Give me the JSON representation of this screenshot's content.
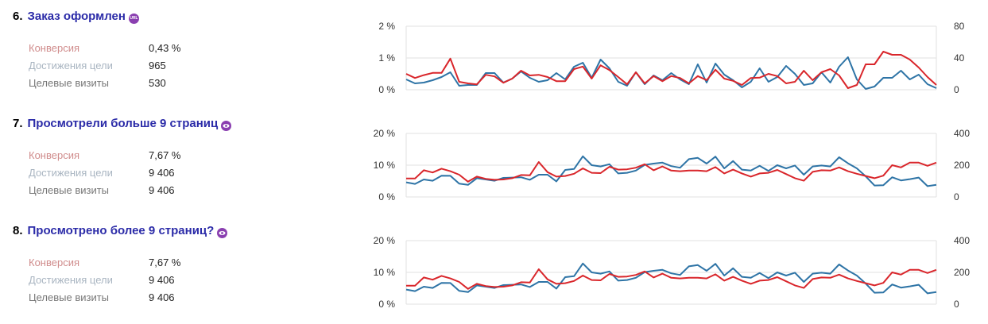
{
  "goals": [
    {
      "number": "6.",
      "title": "Заказ оформлен",
      "badge": "URL",
      "badge_icon": "url-icon",
      "metrics": [
        {
          "label": "Конверсия",
          "value": "0,43 %"
        },
        {
          "label": "Достижения цели",
          "value": "965"
        },
        {
          "label": "Целевые визиты",
          "value": "530"
        }
      ]
    },
    {
      "number": "7.",
      "title": "Просмотрели больше 9 страниц",
      "badge": "",
      "badge_icon": "eye-icon",
      "metrics": [
        {
          "label": "Конверсия",
          "value": "7,67 %"
        },
        {
          "label": "Достижения цели",
          "value": "9 406"
        },
        {
          "label": "Целевые визиты",
          "value": "9 406"
        }
      ]
    },
    {
      "number": "8.",
      "title": "Просмотрено более 9 страниц?",
      "badge": "",
      "badge_icon": "eye-icon",
      "metrics": [
        {
          "label": "Конверсия",
          "value": "7,67 %"
        },
        {
          "label": "Достижения цели",
          "value": "9 406"
        },
        {
          "label": "Целевые визиты",
          "value": "9 406"
        }
      ]
    }
  ],
  "colors": {
    "red": "#d9262b",
    "blue": "#2e74a6"
  },
  "chart_data": [
    {
      "type": "line",
      "left_ticks": [
        "0 %",
        "1 %",
        "2 %"
      ],
      "right_ticks": [
        "0",
        "40",
        "80"
      ],
      "left_max": 2,
      "right_max": 80,
      "series": [
        {
          "name": "Конверсия",
          "axis": "left",
          "color": "#d9262b",
          "values": [
            0.5,
            0.37,
            0.46,
            0.53,
            0.53,
            0.98,
            0.25,
            0.2,
            0.17,
            0.47,
            0.42,
            0.22,
            0.35,
            0.6,
            0.45,
            0.47,
            0.4,
            0.27,
            0.27,
            0.65,
            0.73,
            0.35,
            0.77,
            0.62,
            0.4,
            0.17,
            0.55,
            0.2,
            0.43,
            0.27,
            0.43,
            0.37,
            0.2,
            0.43,
            0.3,
            0.63,
            0.35,
            0.28,
            0.15,
            0.37,
            0.38,
            0.5,
            0.43,
            0.2,
            0.25,
            0.6,
            0.3,
            0.55,
            0.65,
            0.45,
            0.05,
            0.15,
            0.8,
            0.8,
            1.2,
            1.1,
            1.1,
            0.95,
            0.7,
            0.4,
            0.15
          ]
        },
        {
          "name": "Целевые визиты",
          "axis": "right",
          "color": "#2e74a6",
          "values": [
            13,
            8,
            9,
            12,
            16,
            22,
            5,
            6,
            6,
            21,
            21,
            9,
            14,
            23,
            15,
            10,
            12,
            21,
            13,
            29,
            34,
            15,
            38,
            27,
            10,
            5,
            22,
            7,
            18,
            12,
            21,
            13,
            7,
            32,
            9,
            33,
            19,
            12,
            3,
            10,
            27,
            10,
            16,
            30,
            20,
            6,
            8,
            22,
            9,
            29,
            41,
            13,
            1,
            4,
            15,
            15,
            24,
            13,
            19,
            7,
            2
          ]
        }
      ]
    },
    {
      "type": "line",
      "left_ticks": [
        "0 %",
        "10 %",
        "20 %"
      ],
      "right_ticks": [
        "0",
        "200",
        "400"
      ],
      "left_max": 20,
      "right_max": 400,
      "series": [
        {
          "name": "Конверсия",
          "axis": "left",
          "color": "#d9262b",
          "values": [
            5.8,
            5.8,
            8.4,
            7.7,
            8.9,
            8.1,
            7,
            4.8,
            6.4,
            5.7,
            5.4,
            5.5,
            5.9,
            6.9,
            6.8,
            11,
            7.8,
            6.4,
            6.6,
            7.3,
            9,
            7.6,
            7.5,
            9.5,
            8.6,
            8.7,
            9.2,
            10.3,
            8.4,
            9.6,
            8.3,
            8.1,
            8.3,
            8.3,
            8.1,
            9.4,
            7.4,
            8.6,
            7.4,
            6.4,
            7.4,
            7.6,
            8.5,
            7.2,
            5.9,
            5.1,
            7.9,
            8.4,
            8.3,
            9.3,
            8.1,
            7.3,
            6.6,
            5.9,
            6.7,
            10,
            9.3,
            10.8,
            10.8,
            9.8,
            10.8
          ]
        },
        {
          "name": "Целевые визиты",
          "axis": "right",
          "color": "#2e74a6",
          "values": [
            92,
            82,
            110,
            102,
            134,
            133,
            84,
            76,
            118,
            110,
            102,
            120,
            122,
            124,
            108,
            140,
            140,
            98,
            170,
            176,
            256,
            200,
            192,
            206,
            148,
            152,
            166,
            202,
            210,
            216,
            194,
            184,
            238,
            246,
            210,
            254,
            180,
            226,
            172,
            166,
            196,
            164,
            200,
            180,
            198,
            140,
            192,
            198,
            192,
            250,
            212,
            180,
            130,
            72,
            74,
            124,
            104,
            112,
            122,
            68,
            76
          ]
        }
      ]
    },
    {
      "type": "line",
      "left_ticks": [
        "0 %",
        "10 %",
        "20 %"
      ],
      "right_ticks": [
        "0",
        "200",
        "400"
      ],
      "left_max": 20,
      "right_max": 400,
      "series": [
        {
          "name": "Конверсия",
          "axis": "left",
          "color": "#d9262b",
          "values": [
            5.8,
            5.8,
            8.4,
            7.7,
            8.9,
            8.1,
            7,
            4.8,
            6.4,
            5.7,
            5.4,
            5.5,
            5.9,
            6.9,
            6.8,
            11,
            7.8,
            6.4,
            6.6,
            7.3,
            9,
            7.6,
            7.5,
            9.5,
            8.6,
            8.7,
            9.2,
            10.3,
            8.4,
            9.6,
            8.3,
            8.1,
            8.3,
            8.3,
            8.1,
            9.4,
            7.4,
            8.6,
            7.4,
            6.4,
            7.4,
            7.6,
            8.5,
            7.2,
            5.9,
            5.1,
            7.9,
            8.4,
            8.3,
            9.3,
            8.1,
            7.3,
            6.6,
            5.9,
            6.7,
            10,
            9.3,
            10.8,
            10.8,
            9.8,
            10.8
          ]
        },
        {
          "name": "Целевые визиты",
          "axis": "right",
          "color": "#2e74a6",
          "values": [
            92,
            82,
            110,
            102,
            134,
            133,
            84,
            76,
            118,
            110,
            102,
            120,
            122,
            124,
            108,
            140,
            140,
            98,
            170,
            176,
            256,
            200,
            192,
            206,
            148,
            152,
            166,
            202,
            210,
            216,
            194,
            184,
            238,
            246,
            210,
            254,
            180,
            226,
            172,
            166,
            196,
            164,
            200,
            180,
            198,
            140,
            192,
            198,
            192,
            250,
            212,
            180,
            130,
            72,
            74,
            124,
            104,
            112,
            122,
            68,
            76
          ]
        }
      ]
    }
  ]
}
